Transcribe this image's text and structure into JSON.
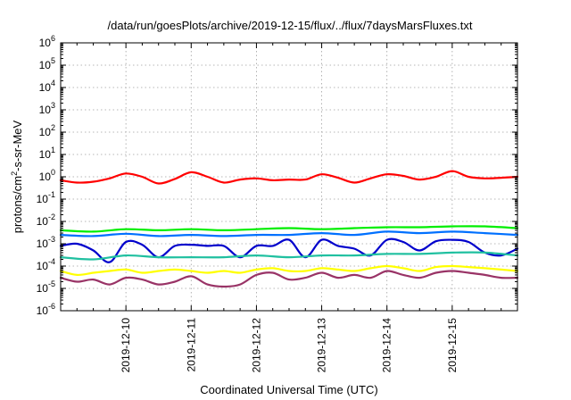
{
  "chart_data": {
    "type": "line",
    "title": "/data/run/goesPlots/archive/2019-12-15/flux/../flux/7daysMarsFluxes.txt",
    "xlabel": "Coordinated Universal Time (UTC)",
    "ylabel": {
      "base": "protons/cm",
      "sup": "2",
      "rest": "-s-sr-MeV"
    },
    "yscale": "log",
    "ylim_exp": [
      -6,
      6
    ],
    "yticks": [
      {
        "base": "10",
        "exp": "-6"
      },
      {
        "base": "10",
        "exp": "-5"
      },
      {
        "base": "10",
        "exp": "-4"
      },
      {
        "base": "10",
        "exp": "-3"
      },
      {
        "base": "10",
        "exp": "-2"
      },
      {
        "base": "10",
        "exp": "-1"
      },
      {
        "base": "10",
        "exp": ""
      },
      {
        "base": "10",
        "exp": ""
      },
      {
        "base": "10",
        "exp": "2"
      },
      {
        "base": "10",
        "exp": "3"
      },
      {
        "base": "10",
        "exp": "4"
      },
      {
        "base": "10",
        "exp": "5"
      },
      {
        "base": "10",
        "exp": "6"
      }
    ],
    "ytick_text": [
      "10-6",
      "10-5",
      "10-4",
      "10-3",
      "10-2",
      "10-1",
      "100",
      "101",
      "102",
      "103",
      "104",
      "105",
      "106"
    ],
    "xlim_days": [
      0,
      7
    ],
    "xticks": [
      {
        "label": "2019-12-10",
        "day": 1
      },
      {
        "label": "2019-12-11",
        "day": 2
      },
      {
        "label": "2019-12-12",
        "day": 3
      },
      {
        "label": "2019-12-13",
        "day": 4
      },
      {
        "label": "2019-12-14",
        "day": 5
      },
      {
        "label": "2019-12-15",
        "day": 6
      }
    ],
    "grid": true,
    "series": [
      {
        "color": "#ff0000",
        "x": [
          0,
          0.25,
          0.5,
          0.75,
          1.0,
          1.25,
          1.5,
          1.75,
          2.0,
          2.25,
          2.5,
          2.75,
          3.0,
          3.25,
          3.5,
          3.75,
          4.0,
          4.25,
          4.5,
          4.75,
          5.0,
          5.25,
          5.5,
          5.75,
          6.0,
          6.25,
          6.5,
          6.75,
          7.0
        ],
        "y": [
          0.7,
          0.55,
          0.6,
          0.85,
          1.4,
          1.0,
          0.5,
          0.8,
          1.6,
          1.0,
          0.55,
          0.75,
          0.85,
          0.7,
          0.75,
          0.75,
          1.3,
          0.9,
          0.55,
          0.85,
          1.3,
          1.1,
          0.75,
          1.0,
          1.8,
          1.0,
          0.85,
          0.9,
          1.0
        ]
      },
      {
        "color": "#00ee00",
        "x": [
          0,
          0.5,
          1.0,
          1.5,
          2.0,
          2.5,
          3.0,
          3.5,
          4.0,
          4.5,
          5.0,
          5.5,
          6.0,
          6.5,
          7.0
        ],
        "y": [
          0.004,
          0.0035,
          0.0045,
          0.004,
          0.0045,
          0.004,
          0.0045,
          0.005,
          0.0045,
          0.005,
          0.0055,
          0.0055,
          0.006,
          0.006,
          0.005
        ]
      },
      {
        "color": "#0070ff",
        "x": [
          0,
          0.5,
          1.0,
          1.5,
          2.0,
          2.5,
          3.0,
          3.5,
          4.0,
          4.5,
          5.0,
          5.5,
          6.0,
          6.5,
          7.0
        ],
        "y": [
          0.0025,
          0.0022,
          0.0028,
          0.0022,
          0.0025,
          0.0022,
          0.0025,
          0.0025,
          0.003,
          0.0025,
          0.0035,
          0.003,
          0.0035,
          0.003,
          0.0025
        ]
      },
      {
        "color": "#0000cc",
        "x": [
          0,
          0.25,
          0.5,
          0.75,
          1.0,
          1.25,
          1.5,
          1.75,
          2.0,
          2.25,
          2.5,
          2.75,
          3.0,
          3.25,
          3.5,
          3.75,
          4.0,
          4.25,
          4.5,
          4.75,
          5.0,
          5.25,
          5.5,
          5.75,
          6.0,
          6.25,
          6.5,
          6.75,
          7.0
        ],
        "y": [
          0.0008,
          0.001,
          0.0005,
          0.00015,
          0.0012,
          0.0009,
          0.00025,
          0.0008,
          0.0009,
          0.0008,
          0.0008,
          0.00025,
          0.0008,
          0.0008,
          0.0015,
          0.00025,
          0.0015,
          0.0008,
          0.0006,
          0.0003,
          0.0015,
          0.0012,
          0.0005,
          0.0013,
          0.0015,
          0.0012,
          0.0004,
          0.0003,
          0.0006
        ]
      },
      {
        "color": "#20c0a0",
        "x": [
          0,
          0.5,
          1.0,
          1.5,
          2.0,
          2.5,
          3.0,
          3.5,
          4.0,
          4.5,
          5.0,
          5.5,
          6.0,
          6.5,
          7.0
        ],
        "y": [
          0.00025,
          0.0002,
          0.0003,
          0.00025,
          0.00025,
          0.00025,
          0.0003,
          0.00025,
          0.0003,
          0.0003,
          0.00035,
          0.00035,
          0.0004,
          0.0004,
          0.0003
        ]
      },
      {
        "color": "#ffff00",
        "x": [
          0,
          0.25,
          0.5,
          0.75,
          1.0,
          1.25,
          1.5,
          1.75,
          2.0,
          2.25,
          2.5,
          2.75,
          3.0,
          3.25,
          3.5,
          3.75,
          4.0,
          4.25,
          4.5,
          4.75,
          5.0,
          5.25,
          5.5,
          5.75,
          6.0,
          6.25,
          6.5,
          6.75,
          7.0
        ],
        "y": [
          6e-05,
          4e-05,
          5e-05,
          6e-05,
          7e-05,
          5e-05,
          6e-05,
          7e-05,
          6e-05,
          5e-05,
          6e-05,
          5e-05,
          7e-05,
          8e-05,
          6e-05,
          6e-05,
          8e-05,
          7e-05,
          6e-05,
          8e-05,
          0.0001,
          8e-05,
          6e-05,
          9e-05,
          0.0001,
          9e-05,
          8e-05,
          7e-05,
          6e-05
        ]
      },
      {
        "color": "#993366",
        "x": [
          0,
          0.25,
          0.5,
          0.75,
          1.0,
          1.25,
          1.5,
          1.75,
          2.0,
          2.25,
          2.5,
          2.75,
          3.0,
          3.25,
          3.5,
          3.75,
          4.0,
          4.25,
          4.5,
          4.75,
          5.0,
          5.25,
          5.5,
          5.75,
          6.0,
          6.25,
          6.5,
          6.75,
          7.0
        ],
        "y": [
          3e-05,
          2e-05,
          2.5e-05,
          1.5e-05,
          3e-05,
          2.5e-05,
          1.5e-05,
          2e-05,
          3.5e-05,
          1.5e-05,
          1.2e-05,
          1.5e-05,
          4e-05,
          5e-05,
          2.5e-05,
          3e-05,
          5e-05,
          3e-05,
          4e-05,
          3e-05,
          6e-05,
          4e-05,
          3e-05,
          5e-05,
          6e-05,
          5e-05,
          4e-05,
          3e-05,
          3e-05
        ]
      }
    ]
  }
}
